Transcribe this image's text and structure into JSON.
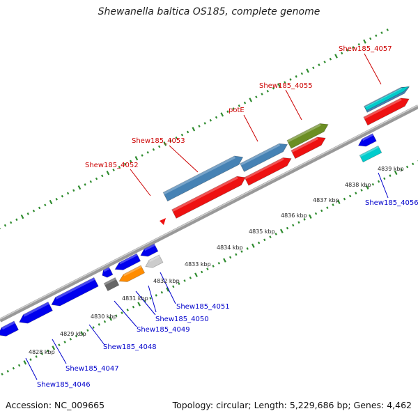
{
  "title": "Shewanella baltica OS185, complete genome",
  "footer": {
    "accession": "Accession: NC_009665",
    "summary": "Topology: circular; Length: 5,229,686 bp; Genes: 4,462"
  },
  "colors": {
    "backbone": "#888888",
    "tick": "#2e8b2e",
    "label_top": "#cc0000",
    "label_bottom": "#0000cc"
  },
  "kbp_labels": [
    "4828 kbp",
    "4829 kbp",
    "4830 kbp",
    "4831 kbp",
    "4832 kbp",
    "4833 kbp",
    "4834 kbp",
    "4835 kbp",
    "4836 kbp",
    "4837 kbp",
    "4838 kbp",
    "4839 kbp"
  ],
  "genes_top_labels": [
    "Shew185_4052",
    "Shew185_4053",
    "potE",
    "Shew185_4055",
    "Shew185_4057"
  ],
  "genes_bottom_labels": [
    "Shew185_4046",
    "Shew185_4047",
    "Shew185_4048",
    "Shew185_4049",
    "Shew185_4050",
    "Shew185_4051",
    "Shew185_4056"
  ]
}
